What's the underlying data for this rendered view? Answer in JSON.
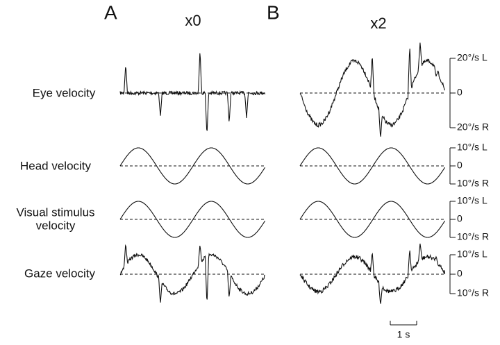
{
  "panels": [
    {
      "label": "A",
      "title": "x0"
    },
    {
      "label": "B",
      "title": "x2"
    }
  ],
  "rows": [
    {
      "label": [
        "Eye velocity"
      ],
      "scale": {
        "top": "20°/s L",
        "mid": "0",
        "bottom": "20°/s R"
      }
    },
    {
      "label": [
        "Head velocity"
      ],
      "scale": {
        "top": "10°/s L",
        "mid": "0",
        "bottom": "10°/s R"
      }
    },
    {
      "label": [
        "Visual stimulus",
        "velocity"
      ],
      "scale": {
        "top": "10°/s L",
        "mid": "0",
        "bottom": "10°/s R"
      }
    },
    {
      "label": [
        "Gaze velocity"
      ],
      "scale": {
        "top": "10°/s L",
        "mid": "0",
        "bottom": "10°/s R"
      }
    }
  ],
  "time_scale": "1 s"
}
